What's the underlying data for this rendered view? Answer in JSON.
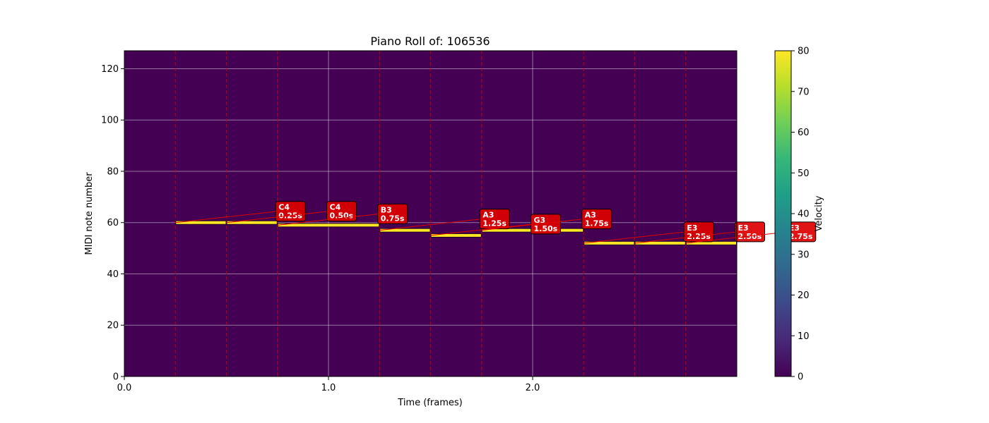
{
  "chart_data": {
    "type": "heatmap",
    "title": "Piano Roll of: 106536",
    "xlabel": "Time (frames)",
    "ylabel": "MIDI note number",
    "xlim": [
      0,
      3.0
    ],
    "ylim": [
      0,
      127
    ],
    "x_ticks": [
      0.0,
      1.0,
      2.0
    ],
    "x_tick_labels": [
      "0.0",
      "1.0",
      "2.0"
    ],
    "y_ticks": [
      0,
      20,
      40,
      60,
      80,
      100,
      120
    ],
    "y_tick_labels": [
      "0",
      "20",
      "40",
      "60",
      "80",
      "100",
      "120"
    ],
    "grid": true,
    "background_color": "#440154",
    "note_color": "#fde725",
    "marker_color": "#cc0000",
    "onset_markers": [
      0.25,
      0.5,
      0.75,
      1.25,
      1.5,
      1.75,
      2.25,
      2.5,
      2.75
    ],
    "notes": [
      {
        "start": 0.25,
        "end": 0.5,
        "pitch": 60,
        "velocity": 80
      },
      {
        "start": 0.5,
        "end": 0.75,
        "pitch": 60,
        "velocity": 80
      },
      {
        "start": 0.75,
        "end": 1.25,
        "pitch": 59,
        "velocity": 80
      },
      {
        "start": 1.25,
        "end": 1.5,
        "pitch": 57,
        "velocity": 80
      },
      {
        "start": 1.5,
        "end": 1.75,
        "pitch": 55,
        "velocity": 80
      },
      {
        "start": 1.75,
        "end": 2.25,
        "pitch": 57,
        "velocity": 80
      },
      {
        "start": 2.25,
        "end": 2.5,
        "pitch": 52,
        "velocity": 80
      },
      {
        "start": 2.5,
        "end": 2.75,
        "pitch": 52,
        "velocity": 80
      },
      {
        "start": 2.75,
        "end": 3.0,
        "pitch": 52,
        "velocity": 80
      }
    ],
    "annotations": [
      {
        "note": "C4",
        "time": "0.25s",
        "x": 0.25,
        "pitch": 60
      },
      {
        "note": "C4",
        "time": "0.50s",
        "x": 0.5,
        "pitch": 60
      },
      {
        "note": "B3",
        "time": "0.75s",
        "x": 0.75,
        "pitch": 59
      },
      {
        "note": "A3",
        "time": "1.25s",
        "x": 1.25,
        "pitch": 57
      },
      {
        "note": "G3",
        "time": "1.50s",
        "x": 1.5,
        "pitch": 55
      },
      {
        "note": "A3",
        "time": "1.75s",
        "x": 1.75,
        "pitch": 57
      },
      {
        "note": "E3",
        "time": "2.25s",
        "x": 2.25,
        "pitch": 52
      },
      {
        "note": "E3",
        "time": "2.50s",
        "x": 2.5,
        "pitch": 52
      },
      {
        "note": "E3",
        "time": "2.75s",
        "x": 2.75,
        "pitch": 52
      }
    ],
    "colorbar": {
      "label": "Velocity",
      "range": [
        0,
        80
      ],
      "ticks": [
        0,
        10,
        20,
        30,
        40,
        50,
        60,
        70,
        80
      ],
      "tick_labels": [
        "0",
        "10",
        "20",
        "30",
        "40",
        "50",
        "60",
        "70",
        "80"
      ],
      "colormap": [
        "#440154",
        "#482878",
        "#3e4989",
        "#31688e",
        "#26828e",
        "#1f9e89",
        "#35b779",
        "#6ece58",
        "#b5de2b",
        "#fde725"
      ]
    }
  }
}
